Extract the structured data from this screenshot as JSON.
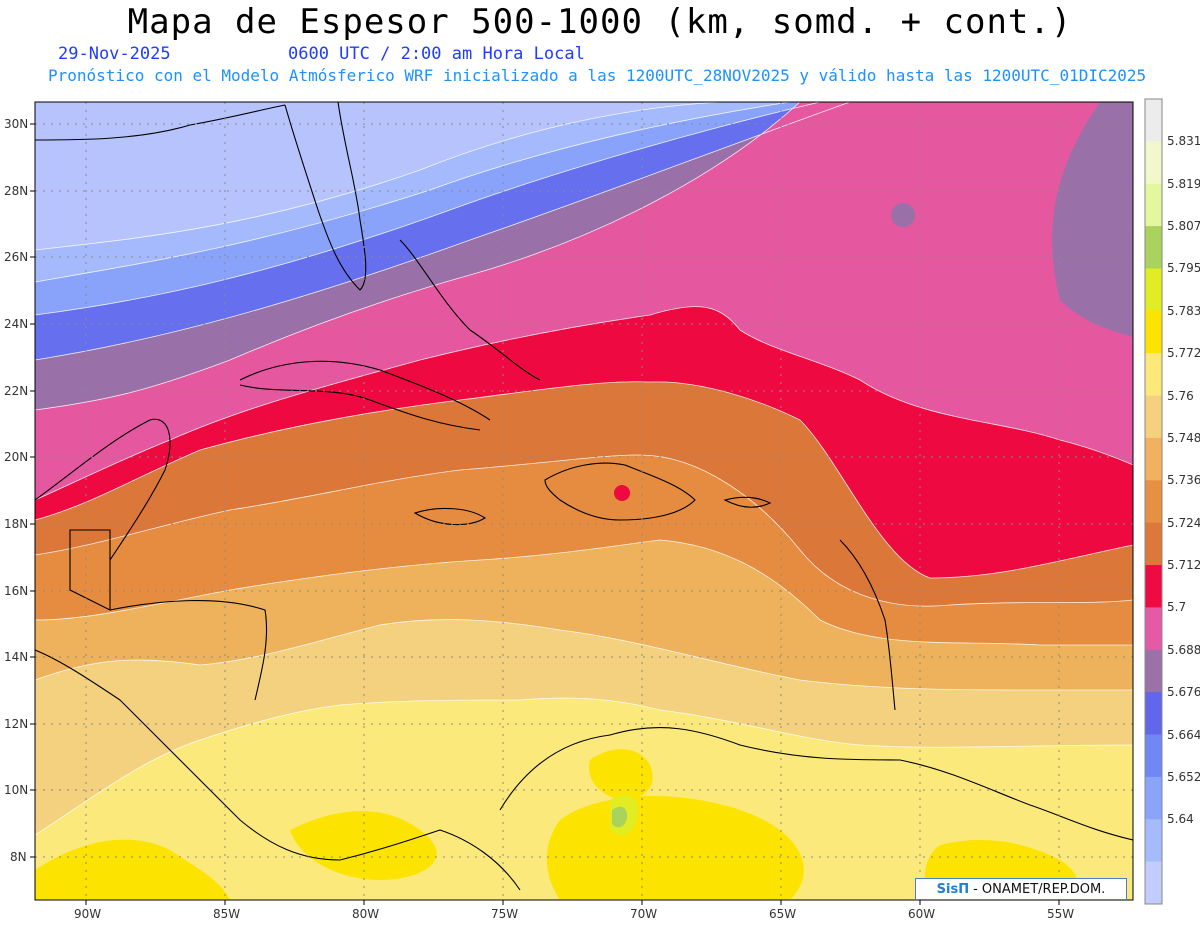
{
  "header": {
    "title": "Mapa de Espesor 500-1000 (km, somd. + cont.)",
    "date": "29-Nov-2025",
    "time": "0600 UTC / 2:00 am Hora Local",
    "forecast": "Pronóstico con el Modelo Atmósferico WRF inicializado a las 1200UTC_28NOV2025 y válido hasta las  1200UTC_01DIC2025"
  },
  "axes": {
    "lat_labels": [
      "30N",
      "28N",
      "26N",
      "24N",
      "22N",
      "20N",
      "18N",
      "16N",
      "14N",
      "12N",
      "10N",
      "8N"
    ],
    "lon_labels": [
      "90W",
      "85W",
      "80W",
      "75W",
      "70W",
      "65W",
      "60W",
      "55W"
    ]
  },
  "legend": {
    "levels": [
      "5.64",
      "5.652",
      "5.664",
      "5.676",
      "5.688",
      "5.7",
      "5.712",
      "5.724",
      "5.736",
      "5.748",
      "5.76",
      "5.772",
      "5.783",
      "5.795",
      "5.807",
      "5.819",
      "5.831"
    ],
    "colors": [
      "#c2cdfd",
      "#a6bbfc",
      "#8aa4fa",
      "#6f88f6",
      "#6266ea",
      "#9a71a8",
      "#e55aa7",
      "#ee0a42",
      "#dd783a",
      "#e69142",
      "#f0b25e",
      "#f4d07f",
      "#fce97a",
      "#fce300",
      "#e2ec22",
      "#a9d35d",
      "#e3f7a0",
      "#f2f8cc",
      "#ececec"
    ]
  },
  "credit": {
    "sis": "SisΠ",
    "text": "- ONAMET/REP.DOM."
  }
}
